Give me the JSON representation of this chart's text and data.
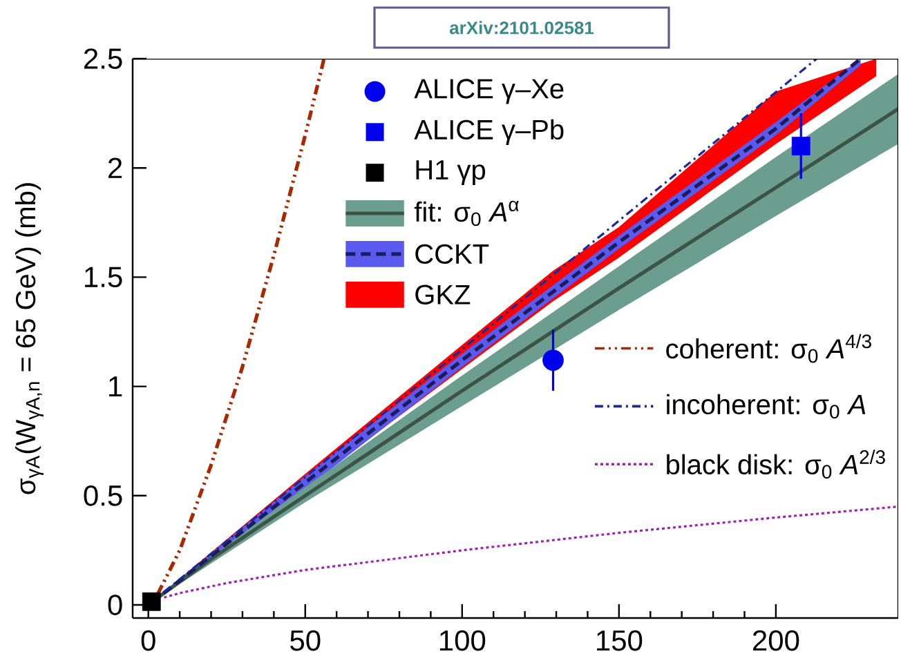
{
  "chart_data": {
    "type": "line",
    "title": "arXiv:2101.02581",
    "ylabel": "σ$_{γA}$(W$_{γA,n}$ = 65 GeV) (mb)",
    "xlim": [
      -5,
      239
    ],
    "ylim": [
      -0.06,
      2.5
    ],
    "xticks": [
      0,
      50,
      100,
      150,
      200
    ],
    "yticks": [
      0,
      0.5,
      1,
      1.5,
      2,
      2.5
    ],
    "legend": "top",
    "series": [
      {
        "name": "ALICE γ–Xe",
        "type": "scatter",
        "marker": "circle",
        "color": "#0000ee",
        "x": [
          129
        ],
        "values": [
          1.12
        ],
        "errors": [
          0.14
        ]
      },
      {
        "name": "ALICE γ–Pb",
        "type": "scatter",
        "marker": "square",
        "color": "#0000ee",
        "x": [
          208
        ],
        "values": [
          2.1
        ],
        "errors": [
          0.15
        ]
      },
      {
        "name": "H1 γp",
        "type": "scatter",
        "marker": "square",
        "color": "#000000",
        "x": [
          1
        ],
        "values": [
          0.015
        ]
      },
      {
        "name": "fit: σ$_{0}$ *A*$^{α}$",
        "type": "area",
        "color": "#6b9e8e",
        "x": [
          1,
          20,
          50,
          100,
          150,
          200,
          239
        ],
        "values": [
          null,
          null,
          null,
          null,
          null,
          null,
          null
        ],
        "lower": [
          0.011,
          0.19,
          0.47,
          0.91,
          1.35,
          1.78,
          2.11
        ],
        "upper": [
          0.013,
          0.22,
          0.54,
          1.05,
          1.55,
          2.05,
          2.43
        ]
      },
      {
        "line_style": "solid",
        "color": "#3b5446",
        "x": [
          1,
          20,
          50,
          100,
          150,
          200,
          239
        ],
        "values": [
          0.012,
          0.21,
          0.5,
          0.98,
          1.45,
          1.91,
          2.27
        ]
      },
      {
        "name": "CCKT",
        "type": "area",
        "color": "#5a5aee",
        "x": [
          1,
          50,
          100,
          150,
          200,
          227
        ],
        "values": [
          null,
          null,
          null,
          null,
          null,
          null
        ],
        "lower": [
          0.009,
          0.53,
          1.09,
          1.63,
          2.15,
          2.47
        ],
        "upper": [
          0.013,
          0.59,
          1.15,
          1.69,
          2.21,
          2.5
        ]
      },
      {
        "line_style": "dashed",
        "color": "#1c1c5c",
        "x": [
          1,
          50,
          100,
          150,
          200,
          227
        ],
        "values": [
          0.011,
          0.56,
          1.12,
          1.66,
          2.18,
          2.5
        ]
      },
      {
        "name": "GKZ",
        "type": "area",
        "color": "#ff0000",
        "x": [
          1,
          50,
          100,
          129,
          150,
          200,
          232
        ],
        "values": [
          null,
          null,
          null,
          null,
          null,
          null,
          null
        ],
        "lower": [
          0.011,
          0.54,
          1.08,
          1.39,
          1.59,
          2.11,
          2.42
        ],
        "upper": [
          0.013,
          0.6,
          1.19,
          1.53,
          1.73,
          2.35,
          2.5
        ]
      },
      {
        "name": "coherent: σ$_{0}$ *A*$^{4/3}$",
        "line_style": "dashdotdot",
        "color": "#a82800",
        "x": [
          3,
          10,
          20,
          30,
          40,
          50,
          56
        ],
        "values": [
          0.05,
          0.25,
          0.64,
          1.09,
          1.6,
          2.15,
          2.5
        ]
      },
      {
        "name": "incoherent: σ$_{0}$ *A*",
        "line_style": "dashdot",
        "color": "#1a2a9a",
        "x": [
          5,
          100,
          213
        ],
        "values": [
          0.059,
          1.17,
          2.5
        ]
      },
      {
        "name": "black disk: σ$_{0}$ *A*$^{2/3}$",
        "line_style": "dotted",
        "color": "#a020b0",
        "x": [
          5,
          10,
          25,
          50,
          100,
          150,
          200,
          239
        ],
        "values": [
          0.034,
          0.054,
          0.1,
          0.16,
          0.25,
          0.33,
          0.4,
          0.45
        ]
      }
    ]
  }
}
